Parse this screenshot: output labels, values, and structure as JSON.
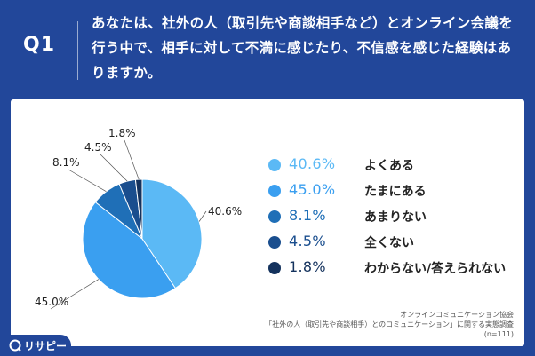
{
  "header": {
    "label": "Q1",
    "question": "あなたは、社外の人（取引先や商談相手など）とオンライン会議を行う中で、相手に対して不満に感じたり、不信感を感じた経験はありますか。"
  },
  "chart_data": {
    "type": "pie",
    "title": "",
    "categories": [
      "よくある",
      "たまにある",
      "あまりない",
      "全くない",
      "わからない/答えられない"
    ],
    "values": [
      40.6,
      45.0,
      8.1,
      4.5,
      1.8
    ],
    "value_labels": [
      "40.6%",
      "45.0%",
      "8.1%",
      "4.5%",
      "1.8%"
    ],
    "colors": [
      "#5bb9f5",
      "#3a9ff0",
      "#1f6fb7",
      "#1a4e8e",
      "#14325d"
    ],
    "legend_position": "right"
  },
  "source": {
    "line1": "オンラインコミュニケーション協会",
    "line2": "「社外の人（取引先や商談相手）とのコミュニケーション」に関する実態調査",
    "line3": "(n=111)"
  },
  "brand": {
    "name": "リサピー"
  }
}
